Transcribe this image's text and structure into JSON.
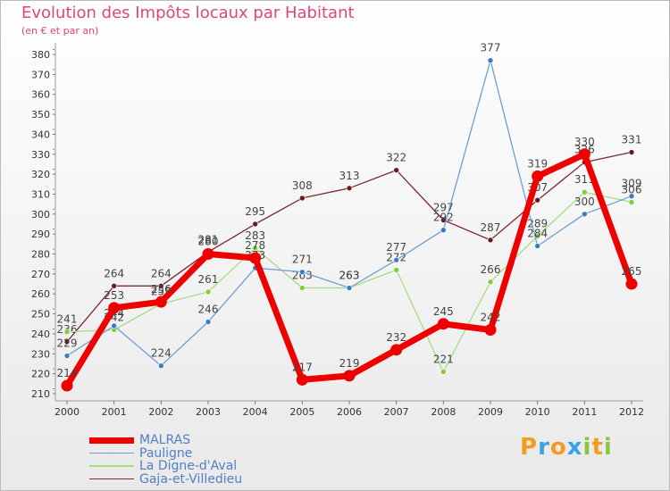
{
  "chart_data": {
    "type": "line",
    "title": "Evolution des Impôts locaux par Habitant",
    "subtitle": "(en € et par an)",
    "xlabel": "",
    "ylabel": "",
    "x": [
      "2000",
      "2001",
      "2002",
      "2003",
      "2004",
      "2005",
      "2006",
      "2007",
      "2008",
      "2009",
      "2010",
      "2011",
      "2012"
    ],
    "ylim": [
      210,
      380
    ],
    "yticks": [
      210,
      220,
      230,
      240,
      250,
      260,
      270,
      280,
      290,
      300,
      310,
      320,
      330,
      340,
      350,
      360,
      370,
      380
    ],
    "grid": false,
    "legend_position": "bottom-left",
    "series": [
      {
        "name": "Gaja-et-Villedieu",
        "color": "#7b2a2e",
        "marker": "#6b1a1e",
        "width": 1.3,
        "values": [
          236,
          264,
          264,
          281,
          295,
          308,
          313,
          322,
          297,
          287,
          307,
          326,
          331
        ],
        "labels": [
          "236",
          "264",
          "264",
          "281",
          "295",
          "308",
          "313",
          "322",
          "297",
          "287",
          "307",
          "326",
          "331"
        ]
      },
      {
        "name": "La Digne-d'Aval",
        "color": "#a6dd80",
        "marker": "#7fcf3d",
        "width": 1.3,
        "values": [
          241,
          242,
          255,
          261,
          283,
          263,
          263,
          272,
          221,
          266,
          289,
          311,
          306
        ],
        "labels": [
          "241",
          "242",
          "255",
          "261",
          "283",
          "263",
          "263",
          "272",
          "221",
          "266",
          "289",
          "311",
          "306"
        ]
      },
      {
        "name": "Pauligne",
        "color": "#6f9fd2",
        "marker": "#3b7bc4",
        "width": 1.3,
        "values": [
          229,
          244,
          224,
          246,
          273,
          271,
          263,
          277,
          292,
          377,
          284,
          300,
          309
        ],
        "labels": [
          "229",
          "244",
          "224",
          "246",
          "273",
          "271",
          "263",
          "277",
          "292",
          "377",
          "284",
          "300",
          "309"
        ]
      },
      {
        "name": "MALRAS",
        "color": "#ee0000",
        "marker": "#ee0000",
        "width": 7,
        "values": [
          214,
          253,
          256,
          280,
          278,
          217,
          219,
          232,
          245,
          242,
          319,
          330,
          265
        ],
        "labels": [
          "214",
          "253",
          "256",
          "280",
          "278",
          "217",
          "219",
          "232",
          "245",
          "242",
          "319",
          "330",
          "265"
        ]
      }
    ]
  },
  "legend": {
    "items": [
      {
        "name": "MALRAS",
        "color": "#ee0000",
        "thickness": 7
      },
      {
        "name": "Pauligne",
        "color": "#6f9fd2",
        "thickness": 1.5
      },
      {
        "name": "La Digne-d'Aval",
        "color": "#a6dd80",
        "thickness": 1.5
      },
      {
        "name": "Gaja-et-Villedieu",
        "color": "#7b2a2e",
        "thickness": 1.5
      }
    ]
  },
  "logo": {
    "text": "Proxiti",
    "letters": [
      {
        "ch": "P",
        "color": "#f39c1f"
      },
      {
        "ch": "r",
        "color": "#3aa3e3"
      },
      {
        "ch": "o",
        "color": "#f39c1f"
      },
      {
        "ch": "x",
        "color": "#3aa3e3"
      },
      {
        "ch": "i",
        "color": "#8cc63f"
      },
      {
        "ch": "t",
        "color": "#f39c1f"
      },
      {
        "ch": "i",
        "color": "#8cc63f"
      }
    ]
  }
}
